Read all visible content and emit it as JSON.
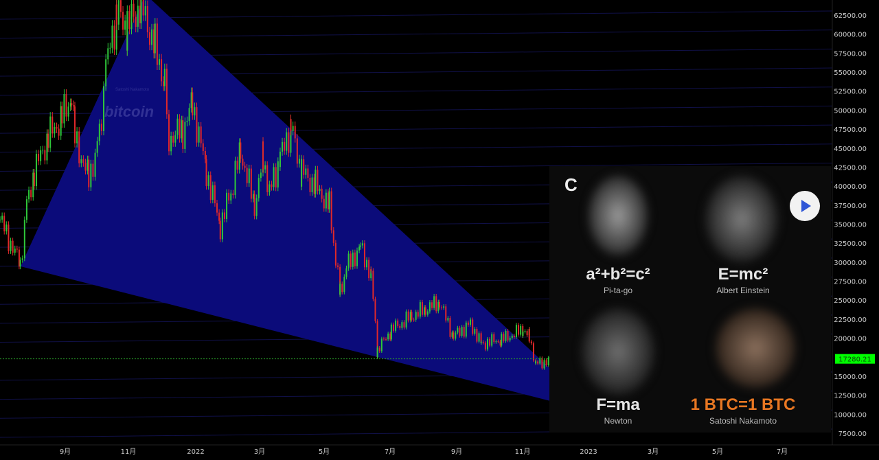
{
  "chart_data": {
    "type": "candlestick",
    "title": "",
    "y_axis": {
      "ticks": [
        "62500.00",
        "60000.00",
        "57500.00",
        "55000.00",
        "52500.00",
        "50000.00",
        "47500.00",
        "45000.00",
        "42500.00",
        "40000.00",
        "37500.00",
        "35000.00",
        "32500.00",
        "30000.00",
        "27500.00",
        "25000.00",
        "22500.00",
        "20000.00",
        "15000.00",
        "12500.00",
        "10000.00",
        "7500.00"
      ],
      "range": [
        5000,
        65000
      ],
      "position": "right"
    },
    "x_axis": {
      "ticks": [
        "9月",
        "11月",
        "2022",
        "3月",
        "5月",
        "7月",
        "9月",
        "11月",
        "2023",
        "3月",
        "5月",
        "7月"
      ],
      "range": [
        "2021-07-02",
        "2023-08-20"
      ]
    },
    "current_price": {
      "label": "17280.21",
      "value": 17280.21,
      "color": "#00ff00"
    },
    "price_path": [
      [
        "2021-07-02",
        35600
      ],
      [
        "2021-07-21",
        29700
      ],
      [
        "2021-07-27",
        37400
      ],
      [
        "2021-08-03",
        41900
      ],
      [
        "2021-08-16",
        46400
      ],
      [
        "2021-08-29",
        49100
      ],
      [
        "2021-09-07",
        51800
      ],
      [
        "2021-09-10",
        46400
      ],
      [
        "2021-09-23",
        41000
      ],
      [
        "2021-10-03",
        46400
      ],
      [
        "2021-10-09",
        55500
      ],
      [
        "2021-10-19",
        62700
      ],
      [
        "2021-10-29",
        60900
      ],
      [
        "2021-11-11",
        64000
      ],
      [
        "2021-11-24",
        58200
      ],
      [
        "2021-12-03",
        53700
      ],
      [
        "2021-12-07",
        46400
      ],
      [
        "2021-12-20",
        47300
      ],
      [
        "2021-12-29",
        50900
      ],
      [
        "2022-01-11",
        41900
      ],
      [
        "2022-01-24",
        34700
      ],
      [
        "2022-02-03",
        39200
      ],
      [
        "2022-02-12",
        44600
      ],
      [
        "2022-02-25",
        37400
      ],
      [
        "2022-03-05",
        43700
      ],
      [
        "2022-03-11",
        39200
      ],
      [
        "2022-03-21",
        43700
      ],
      [
        "2022-03-31",
        47800
      ],
      [
        "2022-04-10",
        41900
      ],
      [
        "2022-04-23",
        40100
      ],
      [
        "2022-05-06",
        37400
      ],
      [
        "2022-05-12",
        30200
      ],
      [
        "2022-05-16",
        26100
      ],
      [
        "2022-05-22",
        29300
      ],
      [
        "2022-06-04",
        32000
      ],
      [
        "2022-06-14",
        28400
      ],
      [
        "2022-06-20",
        18400
      ],
      [
        "2022-07-03",
        21100
      ],
      [
        "2022-07-22",
        22900
      ],
      [
        "2022-08-04",
        23800
      ],
      [
        "2022-08-17",
        24700
      ],
      [
        "2022-08-30",
        20200
      ],
      [
        "2022-09-15",
        22000
      ],
      [
        "2022-09-25",
        19300
      ],
      [
        "2022-10-14",
        19800
      ],
      [
        "2022-11-03",
        21100
      ],
      [
        "2022-11-09",
        20200
      ],
      [
        "2022-11-15",
        16600
      ],
      [
        "2022-11-28",
        17100
      ],
      [
        "2022-12-11",
        17400
      ]
    ],
    "wedge_color": "#0b0b7a",
    "up_color": "#2fc83a",
    "down_color": "#e0282a",
    "grid": true
  },
  "watermark": {
    "text": "bitcoin",
    "subtitle": "Satoshi Nakamoto"
  },
  "promo": {
    "logo": "C",
    "play_icon": "play-icon",
    "cards": [
      {
        "formula": "a²+b²=c²",
        "name": "Pi-ta-go"
      },
      {
        "formula": "E=mc²",
        "name": "Albert Einstein"
      },
      {
        "formula": "F=ma",
        "name": "Newton"
      },
      {
        "formula": "1 BTC=1 BTC",
        "name": "Satoshi Nakamoto",
        "color": "#e87722"
      }
    ]
  }
}
